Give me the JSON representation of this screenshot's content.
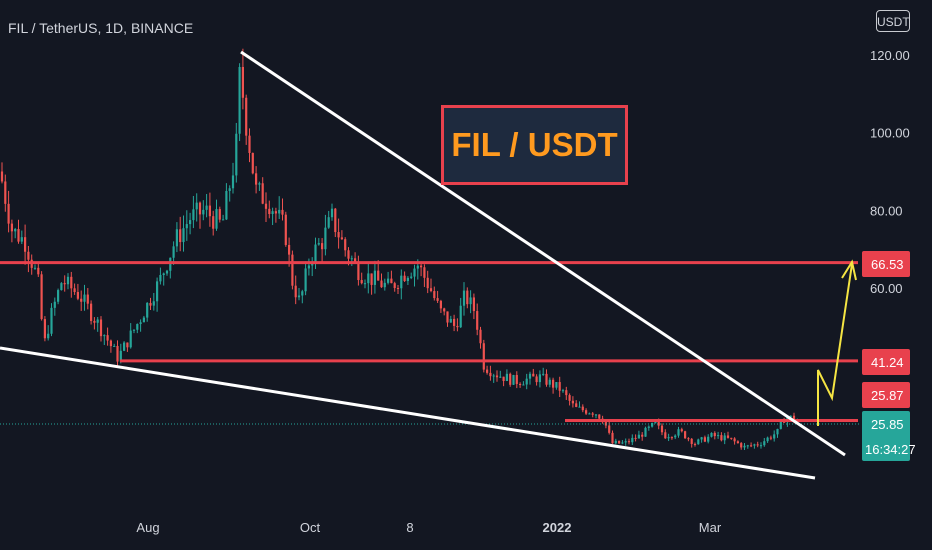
{
  "header": {
    "symbol": "FIL / TetherUS, 1D, BINANCE",
    "currency_button": "USDT"
  },
  "annotation": {
    "title_box": "FIL / USDT"
  },
  "colors": {
    "background": "#131722",
    "up": "#26a69a",
    "down": "#ef5350",
    "resistance_line": "#e8414d",
    "trend_line": "#ffffff",
    "arrow": "#f5e543",
    "title_text": "#ff9a1f"
  },
  "chart_data": {
    "type": "candlestick",
    "title": "",
    "xlabel": "",
    "ylabel": "",
    "x_ticks": [
      "Aug",
      "Oct",
      "8",
      "2022",
      "Mar"
    ],
    "y_ticks": [
      120,
      100,
      80,
      60
    ],
    "y_tick_labels": [
      "120.00",
      "100.00",
      "80.00",
      "60.00"
    ],
    "ylim": [
      10,
      126
    ],
    "price_labels": [
      {
        "value": 66.53,
        "label": "66.53",
        "color": "#e8414d"
      },
      {
        "value": 41.24,
        "label": "41.24",
        "color": "#e8414d"
      },
      {
        "value": 25.87,
        "label": "25.87",
        "color": "#e8414d"
      }
    ],
    "last_price": {
      "value": 25.85,
      "label": "25.85",
      "countdown": "16:34:27",
      "color": "#26a69a"
    },
    "horizontal_lines": [
      66.53,
      41.24,
      25.87
    ],
    "close_path": [
      {
        "x": 0,
        "y": 90
      },
      {
        "x": 12,
        "y": 75
      },
      {
        "x": 25,
        "y": 72
      },
      {
        "x": 38,
        "y": 62
      },
      {
        "x": 44,
        "y": 45
      },
      {
        "x": 50,
        "y": 52
      },
      {
        "x": 62,
        "y": 62
      },
      {
        "x": 80,
        "y": 58
      },
      {
        "x": 100,
        "y": 50
      },
      {
        "x": 118,
        "y": 42
      },
      {
        "x": 140,
        "y": 52
      },
      {
        "x": 160,
        "y": 62
      },
      {
        "x": 175,
        "y": 72
      },
      {
        "x": 190,
        "y": 78
      },
      {
        "x": 205,
        "y": 80
      },
      {
        "x": 222,
        "y": 76
      },
      {
        "x": 236,
        "y": 95
      },
      {
        "x": 240,
        "y": 116
      },
      {
        "x": 246,
        "y": 103
      },
      {
        "x": 256,
        "y": 85
      },
      {
        "x": 270,
        "y": 82
      },
      {
        "x": 285,
        "y": 75
      },
      {
        "x": 292,
        "y": 62
      },
      {
        "x": 300,
        "y": 56
      },
      {
        "x": 310,
        "y": 68
      },
      {
        "x": 322,
        "y": 72
      },
      {
        "x": 332,
        "y": 78
      },
      {
        "x": 345,
        "y": 70
      },
      {
        "x": 360,
        "y": 64
      },
      {
        "x": 375,
        "y": 62
      },
      {
        "x": 390,
        "y": 60
      },
      {
        "x": 405,
        "y": 64
      },
      {
        "x": 418,
        "y": 66
      },
      {
        "x": 430,
        "y": 60
      },
      {
        "x": 440,
        "y": 54
      },
      {
        "x": 455,
        "y": 50
      },
      {
        "x": 465,
        "y": 58
      },
      {
        "x": 475,
        "y": 54
      },
      {
        "x": 484,
        "y": 40
      },
      {
        "x": 495,
        "y": 38
      },
      {
        "x": 515,
        "y": 36
      },
      {
        "x": 540,
        "y": 37
      },
      {
        "x": 560,
        "y": 34
      },
      {
        "x": 575,
        "y": 29
      },
      {
        "x": 595,
        "y": 28
      },
      {
        "x": 604,
        "y": 26
      },
      {
        "x": 612,
        "y": 20
      },
      {
        "x": 625,
        "y": 20
      },
      {
        "x": 640,
        "y": 22
      },
      {
        "x": 655,
        "y": 25
      },
      {
        "x": 665,
        "y": 22
      },
      {
        "x": 680,
        "y": 23
      },
      {
        "x": 695,
        "y": 20
      },
      {
        "x": 712,
        "y": 22
      },
      {
        "x": 730,
        "y": 21
      },
      {
        "x": 745,
        "y": 19
      },
      {
        "x": 760,
        "y": 20
      },
      {
        "x": 778,
        "y": 23
      },
      {
        "x": 785,
        "y": 27
      },
      {
        "x": 800,
        "y": 25.85
      }
    ],
    "grid": false,
    "legend": "none"
  }
}
